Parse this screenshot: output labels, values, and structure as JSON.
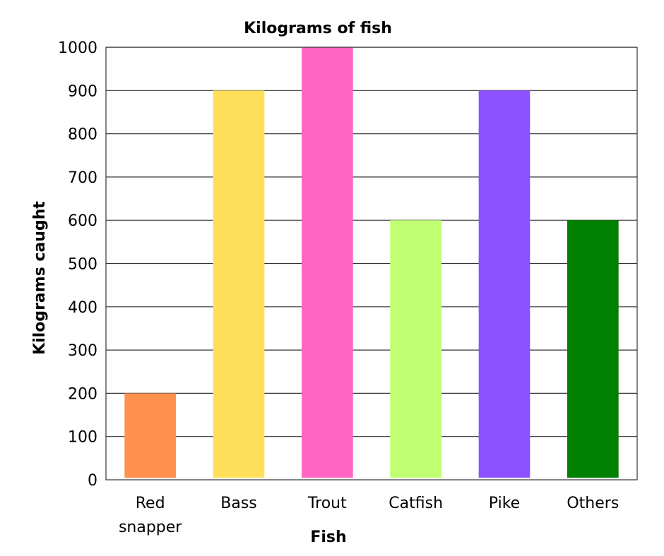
{
  "chart_data": {
    "type": "bar",
    "title": "Kilograms of fish",
    "xlabel": "Fish",
    "ylabel": "Kilograms caught",
    "categories": [
      [
        "Red",
        "snapper"
      ],
      [
        "Bass"
      ],
      [
        "Trout"
      ],
      [
        "Catfish"
      ],
      [
        "Pike"
      ],
      [
        "Others"
      ]
    ],
    "values": [
      200,
      900,
      1000,
      600,
      900,
      600
    ],
    "colors": [
      "#FF914D",
      "#FFDE59",
      "#FF66C4",
      "#C1FF72",
      "#8C52FF",
      "#008000"
    ],
    "ylim": [
      0,
      1000
    ],
    "yticks": [
      0,
      100,
      200,
      300,
      400,
      500,
      600,
      700,
      800,
      900,
      1000
    ],
    "grid": true,
    "legend": "none"
  }
}
